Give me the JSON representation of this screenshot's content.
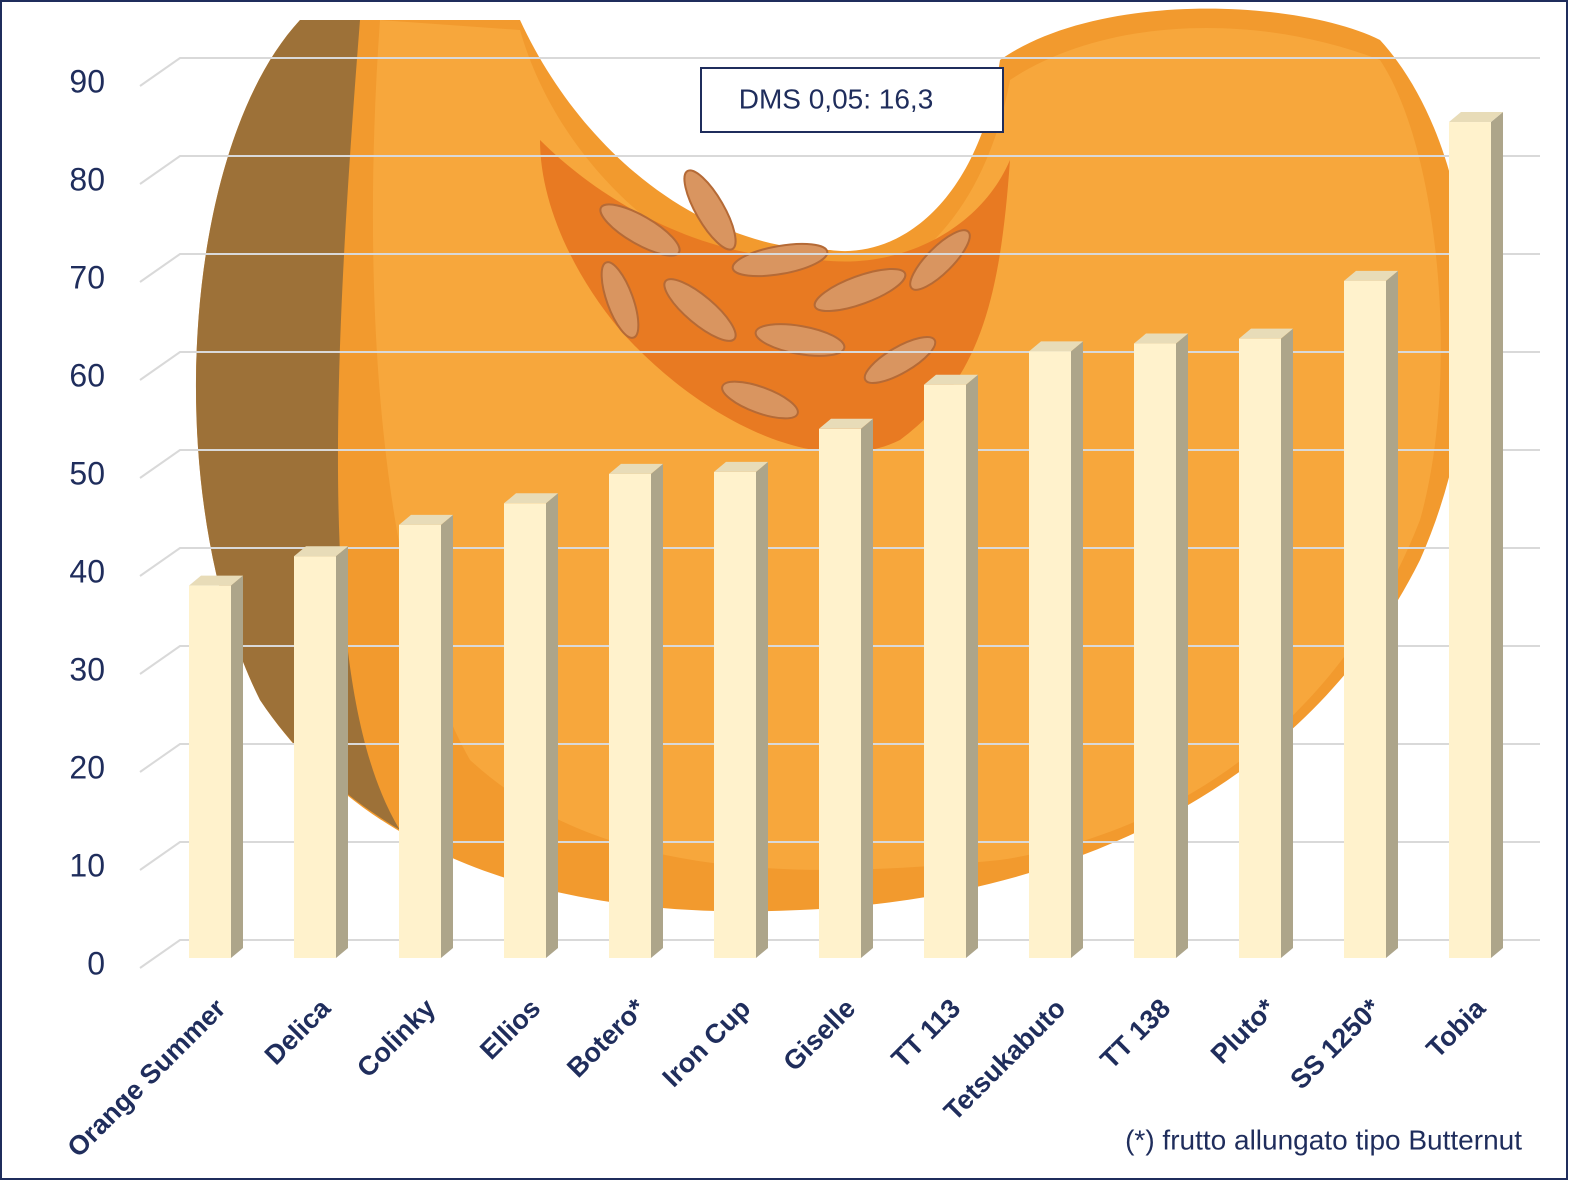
{
  "chart_data": {
    "type": "bar",
    "categories": [
      "Orange Summer",
      "Delica",
      "Colinky",
      "Ellios",
      "Botero*",
      "Iron Cup",
      "Giselle",
      "TT 113",
      "Tetsukabuto",
      "TT 138",
      "Pluto*",
      "SS 1250*",
      "Tobia"
    ],
    "values": [
      38,
      41,
      44.2,
      46.4,
      49.4,
      49.6,
      54,
      58.5,
      61.9,
      62.7,
      63.2,
      69.1,
      85.3
    ],
    "color": "#fff2cc",
    "ylim": [
      0,
      90
    ],
    "yticks": [
      0,
      10,
      20,
      30,
      40,
      50,
      60,
      70,
      80,
      90
    ],
    "grid": true,
    "annotations": [
      "DMS 0,05: 16,3",
      "(*) frutto allungato tipo Butternut"
    ]
  }
}
